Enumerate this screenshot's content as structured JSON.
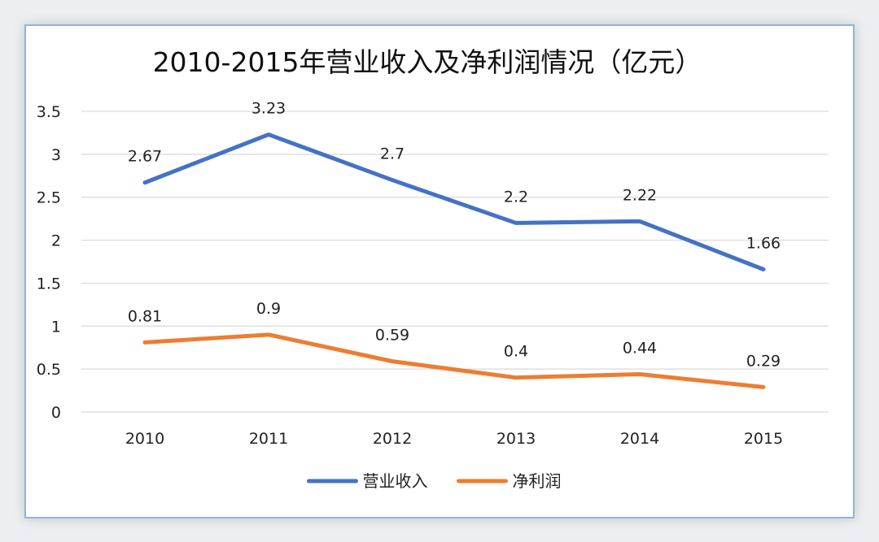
{
  "chart_data": {
    "type": "line",
    "title": "2010-2015年营业收入及净利润情况（亿元）",
    "categories": [
      "2010",
      "2011",
      "2012",
      "2013",
      "2014",
      "2015"
    ],
    "series": [
      {
        "name": "营业收入",
        "values": [
          2.67,
          3.23,
          2.7,
          2.2,
          2.22,
          1.66
        ],
        "color": "#4472c4"
      },
      {
        "name": "净利润",
        "values": [
          0.81,
          0.9,
          0.59,
          0.4,
          0.44,
          0.29
        ],
        "color": "#ed7d31"
      }
    ],
    "yticks": [
      "0",
      "0.5",
      "1",
      "1.5",
      "2",
      "2.5",
      "3",
      "3.5"
    ],
    "ylim": [
      0,
      3.5
    ],
    "grid": true,
    "legend_position": "bottom"
  }
}
